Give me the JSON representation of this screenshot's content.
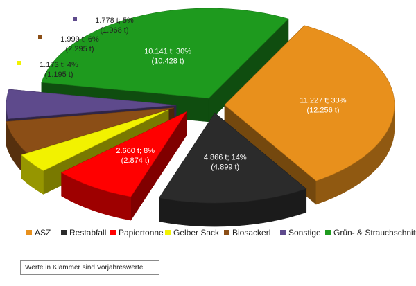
{
  "chart_data": {
    "type": "pie",
    "title": "",
    "slices": [
      {
        "name": "ASZ",
        "value_label": "11.227 t; 33%",
        "prev_label": "(12.256 t)",
        "value": 11227,
        "previous": 12256,
        "percent": 33,
        "color": "#e8901c"
      },
      {
        "name": "Restabfall",
        "value_label": "4.866 t; 14%",
        "prev_label": "(4.899 t)",
        "value": 4866,
        "previous": 4899,
        "percent": 14,
        "color": "#2b2b2b"
      },
      {
        "name": "Papiertonne",
        "value_label": "2.660 t; 8%",
        "prev_label": "(2.874 t)",
        "value": 2660,
        "previous": 2874,
        "percent": 8,
        "color": "#ff0000"
      },
      {
        "name": "Gelber Sack",
        "value_label": "1.173 t; 4%",
        "prev_label": "(1.195 t)",
        "value": 1173,
        "previous": 1195,
        "percent": 4,
        "color": "#f2f200"
      },
      {
        "name": "Biosackerl",
        "value_label": "1.999 t; 6%",
        "prev_label": "(2.295 t)",
        "value": 1999,
        "previous": 2295,
        "percent": 6,
        "color": "#8b4e16"
      },
      {
        "name": "Sonstige",
        "value_label": "1.778 t; 5%",
        "prev_label": "(1.968 t)",
        "value": 1778,
        "previous": 1968,
        "percent": 5,
        "color": "#5e4a8c"
      },
      {
        "name": "Grün- & Strauchschnitt",
        "value_label": "10.141 t; 30%",
        "prev_label": "(10.428 t)",
        "value": 10141,
        "previous": 10428,
        "percent": 30,
        "color": "#1e9a1e"
      }
    ],
    "legend_position": "bottom",
    "exploded": true,
    "style": "3d"
  },
  "note": "Werte in Klammer sind Vorjahreswerte"
}
